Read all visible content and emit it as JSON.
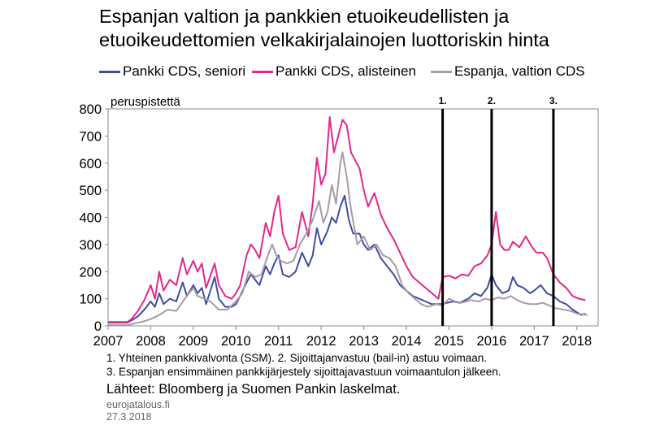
{
  "title_lines": [
    "Espanjan valtion ja pankkien etuoikeudellisten ja",
    "etuoikeudettomien velkakirjalainojen luottoriskin hinta"
  ],
  "notes": [
    "1. Yhteinen pankkivalvonta (SSM). 2. Sijoittajanvastuu (bail-in) astuu voimaan.",
    "3. Espanjan ensimmäinen pankkijärjestely sijoittajavastuun voimaantulon jälkeen."
  ],
  "sources": "Lähteet: Bloomberg ja Suomen Pankin laskelmat.",
  "site": "eurojatalous.fi",
  "date": "27.3.2018",
  "chart_data": {
    "type": "line",
    "title": "Espanjan valtion ja pankkien etuoikeudellisten ja etuoikeudettomien velkakirjalainojen luottoriskin hinta",
    "ylabel": "peruspistettä",
    "xlabel": "",
    "xlim": [
      2007,
      2018.5
    ],
    "ylim": [
      0,
      800
    ],
    "yticks": [
      0,
      100,
      200,
      300,
      400,
      500,
      600,
      700,
      800
    ],
    "xticks": [
      2007,
      2008,
      2009,
      2010,
      2011,
      2012,
      2013,
      2014,
      2015,
      2016,
      2017,
      2018
    ],
    "grid": false,
    "legend_position": "top",
    "events": [
      {
        "label": "1.",
        "x": 2014.85
      },
      {
        "label": "2.",
        "x": 2016.0
      },
      {
        "label": "3.",
        "x": 2017.45
      }
    ],
    "series": [
      {
        "name": "Pankki CDS, seniori",
        "color": "#3f4fa0",
        "points": [
          [
            2007.0,
            12
          ],
          [
            2007.45,
            12
          ],
          [
            2007.55,
            20
          ],
          [
            2007.7,
            35
          ],
          [
            2007.85,
            60
          ],
          [
            2008.0,
            90
          ],
          [
            2008.1,
            70
          ],
          [
            2008.2,
            120
          ],
          [
            2008.3,
            80
          ],
          [
            2008.45,
            100
          ],
          [
            2008.6,
            90
          ],
          [
            2008.75,
            160
          ],
          [
            2008.85,
            110
          ],
          [
            2009.0,
            150
          ],
          [
            2009.1,
            120
          ],
          [
            2009.2,
            140
          ],
          [
            2009.3,
            80
          ],
          [
            2009.5,
            180
          ],
          [
            2009.6,
            100
          ],
          [
            2009.75,
            70
          ],
          [
            2009.9,
            70
          ],
          [
            2010.0,
            80
          ],
          [
            2010.1,
            110
          ],
          [
            2010.25,
            160
          ],
          [
            2010.35,
            190
          ],
          [
            2010.45,
            170
          ],
          [
            2010.55,
            150
          ],
          [
            2010.7,
            220
          ],
          [
            2010.8,
            190
          ],
          [
            2010.9,
            230
          ],
          [
            2011.0,
            260
          ],
          [
            2011.1,
            190
          ],
          [
            2011.25,
            180
          ],
          [
            2011.4,
            200
          ],
          [
            2011.55,
            270
          ],
          [
            2011.7,
            220
          ],
          [
            2011.8,
            260
          ],
          [
            2011.9,
            360
          ],
          [
            2012.0,
            300
          ],
          [
            2012.15,
            350
          ],
          [
            2012.25,
            400
          ],
          [
            2012.35,
            380
          ],
          [
            2012.45,
            440
          ],
          [
            2012.55,
            480
          ],
          [
            2012.65,
            390
          ],
          [
            2012.75,
            340
          ],
          [
            2012.9,
            340
          ],
          [
            2013.0,
            300
          ],
          [
            2013.1,
            280
          ],
          [
            2013.25,
            300
          ],
          [
            2013.4,
            250
          ],
          [
            2013.55,
            220
          ],
          [
            2013.7,
            190
          ],
          [
            2013.85,
            150
          ],
          [
            2014.0,
            130
          ],
          [
            2014.15,
            110
          ],
          [
            2014.3,
            100
          ],
          [
            2014.45,
            90
          ],
          [
            2014.6,
            80
          ],
          [
            2014.8,
            80
          ],
          [
            2014.95,
            85
          ],
          [
            2015.1,
            90
          ],
          [
            2015.25,
            85
          ],
          [
            2015.45,
            100
          ],
          [
            2015.6,
            120
          ],
          [
            2015.75,
            110
          ],
          [
            2015.9,
            140
          ],
          [
            2016.0,
            190
          ],
          [
            2016.1,
            150
          ],
          [
            2016.25,
            120
          ],
          [
            2016.4,
            130
          ],
          [
            2016.5,
            180
          ],
          [
            2016.6,
            150
          ],
          [
            2016.75,
            140
          ],
          [
            2016.9,
            120
          ],
          [
            2017.0,
            130
          ],
          [
            2017.15,
            150
          ],
          [
            2017.3,
            120
          ],
          [
            2017.45,
            110
          ],
          [
            2017.6,
            90
          ],
          [
            2017.75,
            80
          ],
          [
            2017.9,
            60
          ],
          [
            2018.0,
            50
          ],
          [
            2018.1,
            40
          ],
          [
            2018.2,
            45
          ]
        ]
      },
      {
        "name": "Pankki CDS, alisteinen",
        "color": "#e6268a",
        "points": [
          [
            2007.0,
            14
          ],
          [
            2007.45,
            14
          ],
          [
            2007.55,
            25
          ],
          [
            2007.7,
            55
          ],
          [
            2007.85,
            95
          ],
          [
            2008.0,
            150
          ],
          [
            2008.1,
            100
          ],
          [
            2008.2,
            200
          ],
          [
            2008.3,
            130
          ],
          [
            2008.45,
            170
          ],
          [
            2008.6,
            150
          ],
          [
            2008.75,
            250
          ],
          [
            2008.85,
            190
          ],
          [
            2009.0,
            240
          ],
          [
            2009.1,
            200
          ],
          [
            2009.2,
            230
          ],
          [
            2009.3,
            140
          ],
          [
            2009.5,
            230
          ],
          [
            2009.6,
            150
          ],
          [
            2009.75,
            110
          ],
          [
            2009.9,
            100
          ],
          [
            2010.0,
            120
          ],
          [
            2010.1,
            150
          ],
          [
            2010.25,
            260
          ],
          [
            2010.35,
            300
          ],
          [
            2010.45,
            280
          ],
          [
            2010.55,
            250
          ],
          [
            2010.7,
            380
          ],
          [
            2010.8,
            330
          ],
          [
            2010.9,
            420
          ],
          [
            2011.0,
            480
          ],
          [
            2011.1,
            340
          ],
          [
            2011.25,
            280
          ],
          [
            2011.4,
            290
          ],
          [
            2011.55,
            420
          ],
          [
            2011.7,
            330
          ],
          [
            2011.8,
            450
          ],
          [
            2011.9,
            620
          ],
          [
            2012.0,
            520
          ],
          [
            2012.1,
            560
          ],
          [
            2012.2,
            770
          ],
          [
            2012.3,
            640
          ],
          [
            2012.4,
            700
          ],
          [
            2012.5,
            760
          ],
          [
            2012.6,
            740
          ],
          [
            2012.7,
            640
          ],
          [
            2012.8,
            610
          ],
          [
            2012.9,
            580
          ],
          [
            2013.0,
            500
          ],
          [
            2013.1,
            440
          ],
          [
            2013.25,
            490
          ],
          [
            2013.4,
            410
          ],
          [
            2013.55,
            360
          ],
          [
            2013.7,
            320
          ],
          [
            2013.85,
            270
          ],
          [
            2014.0,
            220
          ],
          [
            2014.15,
            180
          ],
          [
            2014.3,
            160
          ],
          [
            2014.45,
            140
          ],
          [
            2014.6,
            120
          ],
          [
            2014.75,
            100
          ],
          [
            2014.85,
            180
          ],
          [
            2015.0,
            185
          ],
          [
            2015.15,
            175
          ],
          [
            2015.3,
            190
          ],
          [
            2015.45,
            185
          ],
          [
            2015.6,
            220
          ],
          [
            2015.75,
            230
          ],
          [
            2015.9,
            260
          ],
          [
            2016.0,
            300
          ],
          [
            2016.1,
            420
          ],
          [
            2016.2,
            300
          ],
          [
            2016.3,
            280
          ],
          [
            2016.4,
            280
          ],
          [
            2016.5,
            310
          ],
          [
            2016.65,
            290
          ],
          [
            2016.8,
            330
          ],
          [
            2016.95,
            290
          ],
          [
            2017.05,
            270
          ],
          [
            2017.2,
            270
          ],
          [
            2017.3,
            250
          ],
          [
            2017.45,
            190
          ],
          [
            2017.6,
            160
          ],
          [
            2017.75,
            140
          ],
          [
            2017.9,
            110
          ],
          [
            2018.05,
            100
          ],
          [
            2018.2,
            95
          ]
        ]
      },
      {
        "name": "Espanja, valtion CDS",
        "color": "#a89ba8",
        "points": [
          [
            2007.0,
            3
          ],
          [
            2007.45,
            3
          ],
          [
            2007.6,
            8
          ],
          [
            2007.8,
            15
          ],
          [
            2008.0,
            25
          ],
          [
            2008.2,
            40
          ],
          [
            2008.4,
            60
          ],
          [
            2008.6,
            55
          ],
          [
            2008.8,
            100
          ],
          [
            2008.9,
            120
          ],
          [
            2009.0,
            140
          ],
          [
            2009.1,
            110
          ],
          [
            2009.25,
            100
          ],
          [
            2009.4,
            90
          ],
          [
            2009.6,
            60
          ],
          [
            2009.8,
            60
          ],
          [
            2010.0,
            90
          ],
          [
            2010.15,
            120
          ],
          [
            2010.3,
            200
          ],
          [
            2010.45,
            180
          ],
          [
            2010.6,
            190
          ],
          [
            2010.75,
            260
          ],
          [
            2010.85,
            300
          ],
          [
            2010.95,
            260
          ],
          [
            2011.05,
            240
          ],
          [
            2011.2,
            230
          ],
          [
            2011.35,
            240
          ],
          [
            2011.5,
            300
          ],
          [
            2011.65,
            340
          ],
          [
            2011.8,
            390
          ],
          [
            2011.95,
            460
          ],
          [
            2012.05,
            380
          ],
          [
            2012.15,
            420
          ],
          [
            2012.25,
            520
          ],
          [
            2012.35,
            450
          ],
          [
            2012.45,
            600
          ],
          [
            2012.5,
            640
          ],
          [
            2012.6,
            550
          ],
          [
            2012.7,
            430
          ],
          [
            2012.85,
            300
          ],
          [
            2013.0,
            330
          ],
          [
            2013.15,
            280
          ],
          [
            2013.3,
            300
          ],
          [
            2013.45,
            260
          ],
          [
            2013.6,
            250
          ],
          [
            2013.75,
            220
          ],
          [
            2013.9,
            150
          ],
          [
            2014.05,
            120
          ],
          [
            2014.2,
            100
          ],
          [
            2014.35,
            80
          ],
          [
            2014.5,
            70
          ],
          [
            2014.7,
            80
          ],
          [
            2014.85,
            75
          ],
          [
            2015.0,
            100
          ],
          [
            2015.15,
            90
          ],
          [
            2015.3,
            85
          ],
          [
            2015.5,
            95
          ],
          [
            2015.7,
            90
          ],
          [
            2015.85,
            100
          ],
          [
            2016.0,
            95
          ],
          [
            2016.15,
            105
          ],
          [
            2016.3,
            100
          ],
          [
            2016.45,
            110
          ],
          [
            2016.6,
            95
          ],
          [
            2016.75,
            85
          ],
          [
            2016.9,
            80
          ],
          [
            2017.05,
            80
          ],
          [
            2017.2,
            85
          ],
          [
            2017.35,
            75
          ],
          [
            2017.5,
            65
          ],
          [
            2017.7,
            60
          ],
          [
            2017.85,
            55
          ],
          [
            2018.0,
            45
          ],
          [
            2018.15,
            42
          ],
          [
            2018.25,
            40
          ]
        ]
      }
    ]
  }
}
